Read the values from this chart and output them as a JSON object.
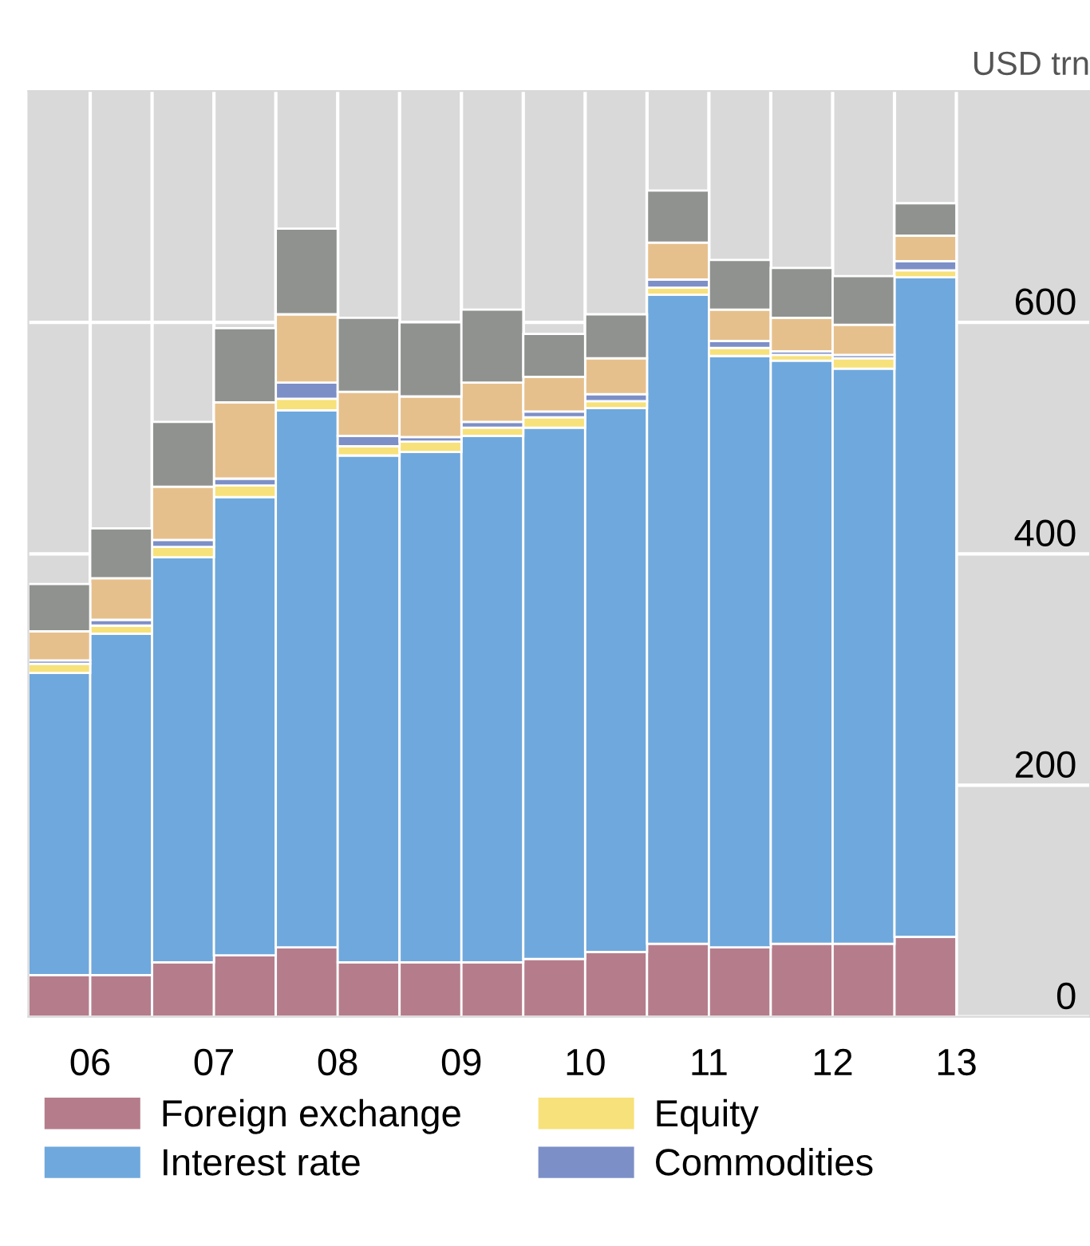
{
  "chart_data": {
    "type": "bar",
    "stacked": true,
    "ylabel": "USD trn",
    "x": [
      2005.75,
      2006.25,
      2006.75,
      2007.25,
      2007.75,
      2008.25,
      2008.75,
      2009.25,
      2009.75,
      2010.25,
      2010.75,
      2011.25,
      2011.75,
      2012.25,
      2012.75
    ],
    "series": [
      {
        "name": "Foreign exchange",
        "color": "#b57d8c",
        "values": [
          36,
          36,
          47,
          53,
          60,
          47,
          47,
          47,
          50,
          56,
          63,
          60,
          63,
          63,
          69
        ]
      },
      {
        "name": "Interest rate",
        "color": "#6fa8dc",
        "values": [
          261,
          295,
          350,
          396,
          464,
          438,
          441,
          455,
          459,
          470,
          561,
          511,
          504,
          497,
          570
        ]
      },
      {
        "name": "Equity",
        "color": "#f7e17a",
        "values": [
          8,
          7,
          9,
          10,
          10,
          8,
          9,
          7,
          9,
          6,
          6,
          7,
          5,
          9,
          6
        ]
      },
      {
        "name": "Commodities",
        "color": "#7d8fc7",
        "values": [
          3,
          5,
          6,
          6,
          14,
          9,
          4,
          5,
          5,
          6,
          7,
          6,
          3,
          3,
          8
        ]
      },
      {
        "color": "#e6c08c",
        "values": [
          25,
          36,
          46,
          66,
          59,
          38,
          35,
          34,
          30,
          31,
          32,
          27,
          29,
          26,
          22
        ]
      },
      {
        "color": "#8f928f",
        "values": [
          41,
          43,
          56,
          64,
          74,
          64,
          64,
          63,
          37,
          38,
          45,
          43,
          43,
          42,
          28
        ]
      }
    ],
    "xlim": [
      2005.5,
      2014.08
    ],
    "xticks": [
      {
        "value": 2006,
        "label": "06"
      },
      {
        "value": 2006.5,
        "label": null
      },
      {
        "value": 2007,
        "label": "07"
      },
      {
        "value": 2007.5,
        "label": null
      },
      {
        "value": 2008,
        "label": "08"
      },
      {
        "value": 2008.5,
        "label": null
      },
      {
        "value": 2009,
        "label": "09"
      },
      {
        "value": 2009.5,
        "label": null
      },
      {
        "value": 2010,
        "label": "10"
      },
      {
        "value": 2010.5,
        "label": null
      },
      {
        "value": 2011,
        "label": "11"
      },
      {
        "value": 2011.5,
        "label": null
      },
      {
        "value": 2012,
        "label": "12"
      },
      {
        "value": 2012.5,
        "label": null
      },
      {
        "value": 2013,
        "label": "13"
      }
    ],
    "ylim": [
      0,
      800
    ],
    "yticks": [
      0,
      200,
      400,
      600
    ],
    "grid": true,
    "legend": "bottom"
  }
}
